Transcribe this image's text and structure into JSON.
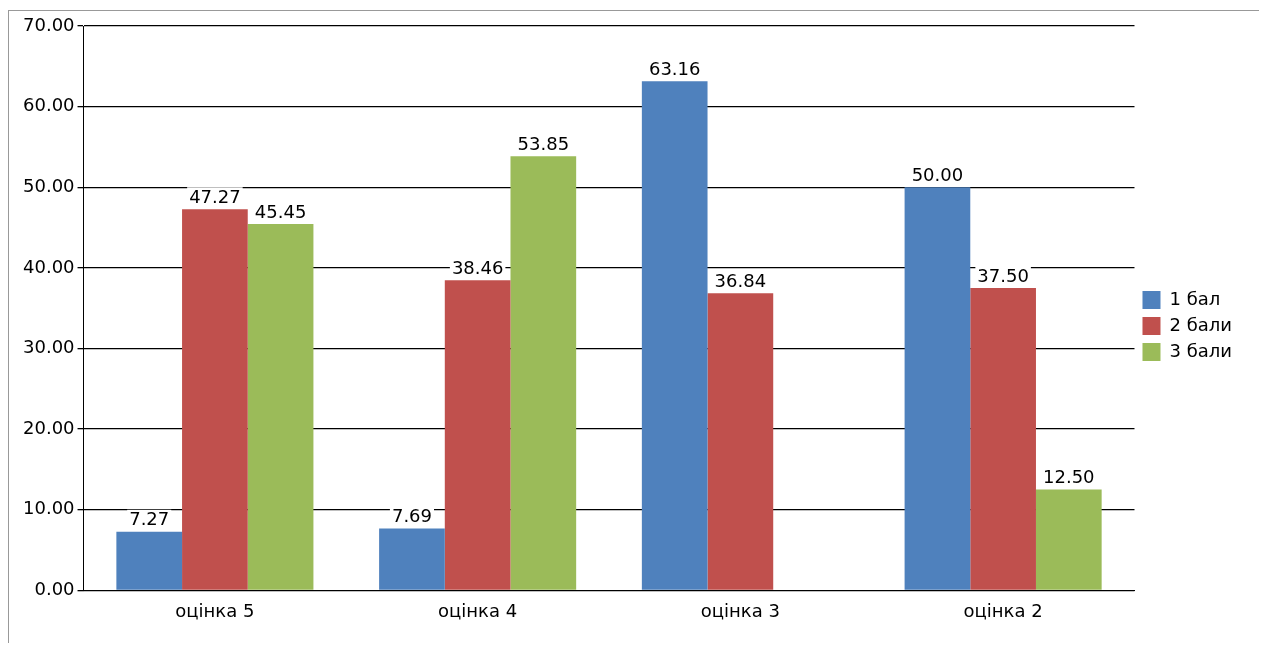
{
  "chart_data": {
    "type": "bar",
    "categories": [
      "оцінка 5",
      "оцінка 4",
      "оцінка 3",
      "оцінка 2"
    ],
    "series": [
      {
        "name": "1 бал",
        "color": "#4f81bd",
        "values": [
          7.27,
          7.69,
          63.16,
          50.0
        ],
        "value_labels": [
          "7.27",
          "7.69",
          "63.16",
          "50.00"
        ]
      },
      {
        "name": "2 бали",
        "color": "#c0504d",
        "values": [
          47.27,
          38.46,
          36.84,
          37.5
        ],
        "value_labels": [
          "47.27",
          "38.46",
          "36.84",
          "37.50"
        ]
      },
      {
        "name": "3 бали",
        "color": "#9bbb59",
        "values": [
          45.45,
          53.85,
          null,
          12.5
        ],
        "value_labels": [
          "45.45",
          "53.85",
          null,
          "12.50"
        ]
      }
    ],
    "ylim": [
      0,
      70
    ],
    "yticks": [
      {
        "value": 0,
        "label": "0.00"
      },
      {
        "value": 10,
        "label": "10.00"
      },
      {
        "value": 20,
        "label": "20.00"
      },
      {
        "value": 30,
        "label": "30.00"
      },
      {
        "value": 40,
        "label": "40.00"
      },
      {
        "value": 50,
        "label": "50.00"
      },
      {
        "value": 60,
        "label": "60.00"
      },
      {
        "value": 70,
        "label": "70.00"
      }
    ],
    "grid": "y",
    "legend": "right"
  }
}
